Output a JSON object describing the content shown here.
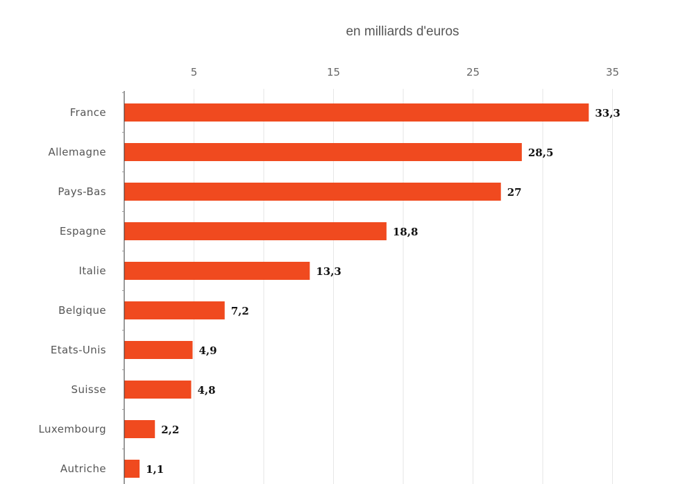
{
  "chart_data": {
    "type": "bar",
    "orientation": "horizontal",
    "title": "",
    "unit_label": "en milliards d'euros",
    "categories": [
      "France",
      "Allemagne",
      "Pays-Bas",
      "Espagne",
      "Italie",
      "Belgique",
      "Etats-Unis",
      "Suisse",
      "Luxembourg",
      "Autriche"
    ],
    "values": [
      33.3,
      28.5,
      27,
      18.8,
      13.3,
      7.2,
      4.9,
      4.8,
      2.2,
      1.1
    ],
    "value_labels": [
      "33,3",
      "28,5",
      "27",
      "18,8",
      "13,3",
      "7,2",
      "4,9",
      "4,8",
      "2,2",
      "1,1"
    ],
    "x_ticks": [
      5,
      15,
      25,
      35
    ],
    "x_tick_labels": [
      "5",
      "15",
      "25",
      "35"
    ],
    "xlim": [
      0,
      36
    ],
    "grid": true,
    "bar_color": "#f04a1f"
  }
}
